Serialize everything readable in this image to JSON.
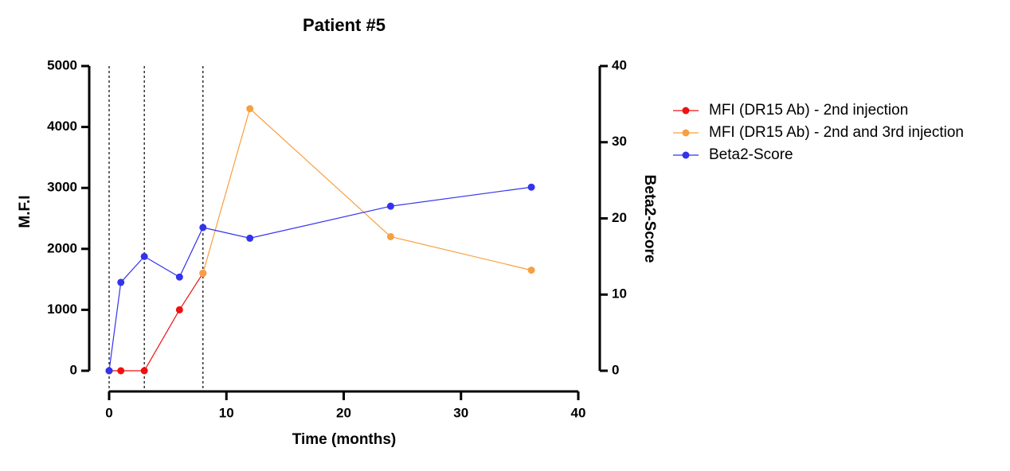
{
  "chart_data": {
    "type": "line",
    "title": "Patient #5",
    "xlabel": "Time (months)",
    "ylabel": "M.F.I",
    "y2label": "Beta2-Score",
    "xlim": [
      0,
      40
    ],
    "xticks": [
      0,
      10,
      20,
      30,
      40
    ],
    "ylim": [
      0,
      5000
    ],
    "yticks": [
      0,
      1000,
      2000,
      3000,
      4000,
      5000
    ],
    "y2lim": [
      0,
      40
    ],
    "y2ticks": [
      0,
      10,
      20,
      30,
      40
    ],
    "vlines": [
      0,
      3,
      8
    ],
    "series": [
      {
        "name": "MFI (DR15 Ab) - 2nd injection",
        "color": "#ee1111",
        "x": [
          0,
          1,
          3,
          6,
          8
        ],
        "values": [
          0,
          0,
          0,
          1000,
          1600
        ]
      },
      {
        "name": "MFI (DR15 Ab) - 2nd and 3rd injection",
        "color": "#f7a040",
        "x": [
          8,
          12,
          24,
          36
        ],
        "values": [
          1600,
          4300,
          2200,
          1650
        ]
      },
      {
        "name": "Beta2-Score",
        "color": "#3333ee",
        "axis": "y2",
        "x": [
          0,
          1,
          3,
          6,
          8,
          12,
          24,
          36
        ],
        "values": [
          0,
          11.6,
          15.0,
          12.3,
          18.8,
          17.4,
          21.6,
          24.1
        ]
      }
    ]
  }
}
